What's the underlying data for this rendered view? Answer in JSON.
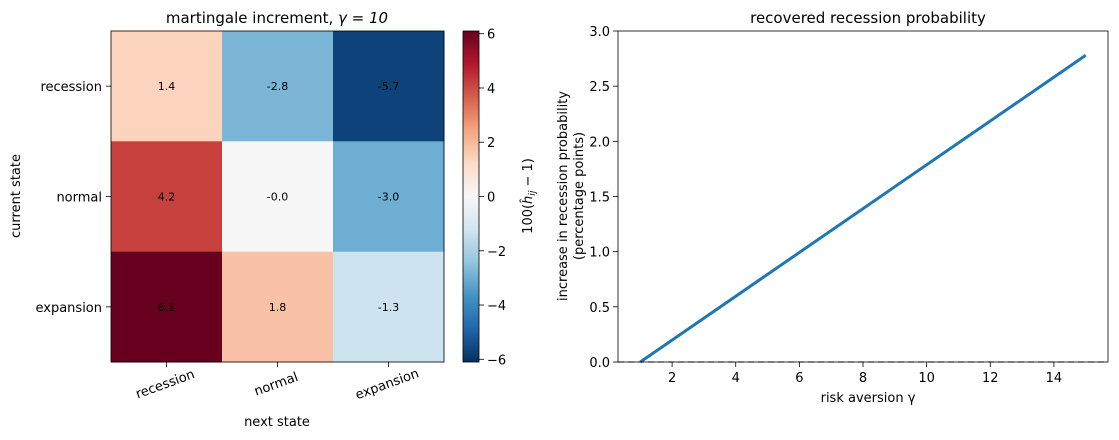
{
  "chart_data": [
    {
      "type": "heatmap",
      "title_prefix": "martingale increment, ",
      "title_gamma": "γ = 10",
      "xlabel": "next state",
      "ylabel": "current state",
      "x_categories": [
        "recession",
        "normal",
        "expansion"
      ],
      "y_categories": [
        "recession",
        "normal",
        "expansion"
      ],
      "values": [
        [
          1.4,
          -2.8,
          -5.7
        ],
        [
          4.2,
          -0.0,
          -3.0
        ],
        [
          6.1,
          1.8,
          -1.3
        ]
      ],
      "value_labels": [
        [
          "1.4",
          "-2.8",
          "-5.7"
        ],
        [
          "4.2",
          "-0.0",
          "-3.0"
        ],
        [
          "6.1",
          "1.8",
          "-1.3"
        ]
      ],
      "colorbar": {
        "label_prefix": "100(",
        "label_hat": "ĥ",
        "label_sub": "ij",
        "label_suffix": " − 1)",
        "range": [
          -6.1,
          6.1
        ],
        "ticks": [
          6,
          4,
          2,
          0,
          -2,
          -4,
          -6
        ],
        "tick_labels": [
          "6",
          "4",
          "2",
          "0",
          "−2",
          "−4",
          "−6"
        ],
        "colormap": "RdBu_r"
      }
    },
    {
      "type": "line",
      "title": "recovered recession probability",
      "xlabel": "risk aversion γ",
      "ylabel_line1": "increase in recession probability",
      "ylabel_line2": "(percentage points)",
      "xlim": [
        0.3,
        15.7
      ],
      "ylim": [
        0,
        3.0
      ],
      "x_ticks": [
        2,
        4,
        6,
        8,
        10,
        12,
        14
      ],
      "x_tick_labels": [
        "2",
        "4",
        "6",
        "8",
        "10",
        "12",
        "14"
      ],
      "y_ticks": [
        0.0,
        0.5,
        1.0,
        1.5,
        2.0,
        2.5,
        3.0
      ],
      "y_tick_labels": [
        "0.0",
        "0.5",
        "1.0",
        "1.5",
        "2.0",
        "2.5",
        "3.0"
      ],
      "series": [
        {
          "x": [
            1,
            15
          ],
          "y": [
            0.0,
            2.78
          ],
          "color": "#1f77b4"
        }
      ],
      "reference_line": {
        "y": 0,
        "style": "dashed",
        "color": "#808080"
      }
    }
  ]
}
